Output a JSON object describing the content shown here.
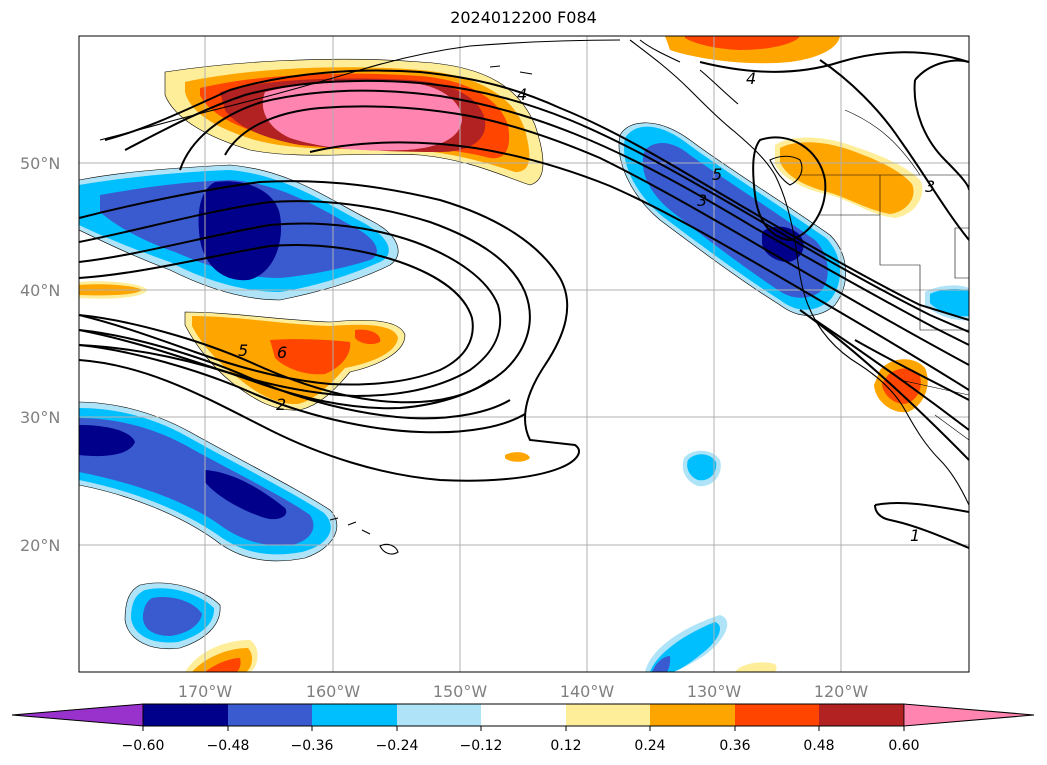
{
  "map": {
    "title": "2024012200 F084",
    "lat_labels": [
      "50°N",
      "40°N",
      "30°N",
      "20°N"
    ],
    "lon_labels": [
      "170°W",
      "160°W",
      "150°W",
      "140°W",
      "130°W",
      "120°W"
    ],
    "contour_labels": [
      "4",
      "5",
      "3",
      "2",
      "5",
      "6",
      "4",
      "3",
      "1"
    ],
    "colorbar": {
      "tick_labels": [
        "−0.60",
        "−0.48",
        "−0.36",
        "−0.24",
        "−0.12",
        "0.12",
        "0.24",
        "0.36",
        "0.48",
        "0.60"
      ],
      "colors": [
        "#9932cc",
        "#00008b",
        "#3a5bd0",
        "#00bfff",
        "#aee3f8",
        "#ffffff",
        "#ffee99",
        "#ffa500",
        "#ff4500",
        "#b22222",
        "#ff85b0"
      ]
    }
  }
}
